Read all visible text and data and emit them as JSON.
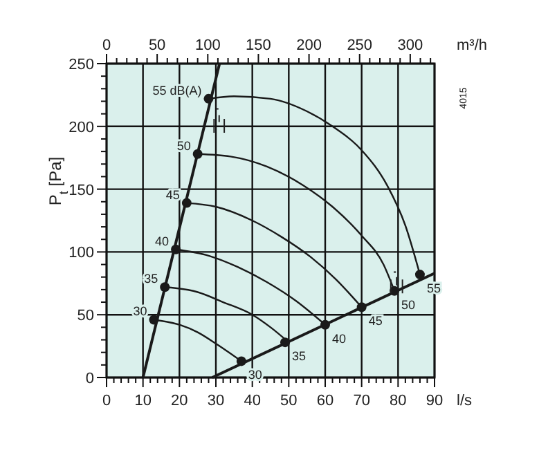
{
  "chart_data": {
    "type": "line",
    "xlabel": "l/s",
    "ylabel": "P$_{t}$ [Pa]",
    "x2label": "m³/h",
    "xlim": [
      0,
      90
    ],
    "ylim": [
      0,
      250
    ],
    "x2lim": [
      0,
      324
    ],
    "xticks": [
      0,
      {
        "value": 2,
        "label": null
      },
      {
        "value": 4,
        "label": null
      },
      {
        "value": 6,
        "label": null
      },
      {
        "value": 8,
        "label": null
      },
      10,
      {
        "value": 12,
        "label": null
      },
      {
        "value": 14,
        "label": null
      },
      {
        "value": 16,
        "label": null
      },
      {
        "value": 18,
        "label": null
      },
      20,
      {
        "value": 22,
        "label": null
      },
      {
        "value": 24,
        "label": null
      },
      {
        "value": 26,
        "label": null
      },
      {
        "value": 28,
        "label": null
      },
      30,
      {
        "value": 32,
        "label": null
      },
      {
        "value": 34,
        "label": null
      },
      {
        "value": 36,
        "label": null
      },
      {
        "value": 38,
        "label": null
      },
      40,
      {
        "value": 42,
        "label": null
      },
      {
        "value": 44,
        "label": null
      },
      {
        "value": 46,
        "label": null
      },
      {
        "value": 48,
        "label": null
      },
      50,
      {
        "value": 52,
        "label": null
      },
      {
        "value": 54,
        "label": null
      },
      {
        "value": 56,
        "label": null
      },
      {
        "value": 58,
        "label": null
      },
      60,
      {
        "value": 62,
        "label": null
      },
      {
        "value": 64,
        "label": null
      },
      {
        "value": 66,
        "label": null
      },
      {
        "value": 68,
        "label": null
      },
      70,
      {
        "value": 72,
        "label": null
      },
      {
        "value": 74,
        "label": null
      },
      {
        "value": 76,
        "label": null
      },
      {
        "value": 78,
        "label": null
      },
      80,
      {
        "value": 82,
        "label": null
      },
      {
        "value": 84,
        "label": null
      },
      {
        "value": 86,
        "label": null
      },
      {
        "value": 88,
        "label": null
      },
      90
    ],
    "yticks": [
      0,
      {
        "value": 10,
        "label": null
      },
      {
        "value": 20,
        "label": null
      },
      {
        "value": 30,
        "label": null
      },
      {
        "value": 40,
        "label": null
      },
      50,
      {
        "value": 60,
        "label": null
      },
      {
        "value": 70,
        "label": null
      },
      {
        "value": 80,
        "label": null
      },
      {
        "value": 90,
        "label": null
      },
      100,
      {
        "value": 110,
        "label": null
      },
      {
        "value": 120,
        "label": null
      },
      {
        "value": 130,
        "label": null
      },
      {
        "value": 140,
        "label": null
      },
      150,
      {
        "value": 160,
        "label": null
      },
      {
        "value": 170,
        "label": null
      },
      {
        "value": 180,
        "label": null
      },
      {
        "value": 190,
        "label": null
      },
      200,
      {
        "value": 210,
        "label": null
      },
      {
        "value": 220,
        "label": null
      },
      {
        "value": 230,
        "label": null
      },
      {
        "value": 240,
        "label": null
      },
      250
    ],
    "x2ticks": [
      0,
      {
        "value": 10,
        "label": null
      },
      {
        "value": 20,
        "label": null
      },
      {
        "value": 30,
        "label": null
      },
      {
        "value": 40,
        "label": null
      },
      50,
      {
        "value": 60,
        "label": null
      },
      {
        "value": 70,
        "label": null
      },
      {
        "value": 80,
        "label": null
      },
      {
        "value": 90,
        "label": null
      },
      100,
      {
        "value": 110,
        "label": null
      },
      {
        "value": 120,
        "label": null
      },
      {
        "value": 130,
        "label": null
      },
      {
        "value": 140,
        "label": null
      },
      150,
      {
        "value": 160,
        "label": null
      },
      {
        "value": 170,
        "label": null
      },
      {
        "value": 180,
        "label": null
      },
      {
        "value": 190,
        "label": null
      },
      200,
      {
        "value": 210,
        "label": null
      },
      {
        "value": 220,
        "label": null
      },
      {
        "value": 230,
        "label": null
      },
      {
        "value": 240,
        "label": null
      },
      250,
      {
        "value": 260,
        "label": null
      },
      {
        "value": 270,
        "label": null
      },
      {
        "value": 280,
        "label": null
      },
      {
        "value": 290,
        "label": null
      },
      300,
      {
        "value": 310,
        "label": null
      },
      {
        "value": 320,
        "label": null
      }
    ],
    "grid": true,
    "line_style": "solid",
    "marker": "none",
    "series": [
      {
        "color": "#1a1a1a",
        "x": [
          13,
          20,
          25,
          30,
          37
        ],
        "values": [
          46,
          42,
          36,
          27,
          13
        ]
      },
      {
        "color": "#1a1a1a",
        "x": [
          16,
          25,
          32,
          40,
          45,
          50
        ],
        "values": [
          72,
          68,
          60,
          50,
          40,
          28
        ]
      },
      {
        "color": "#1a1a1a",
        "x": [
          19,
          28,
          36,
          44,
          52,
          60
        ],
        "values": [
          102,
          97,
          88,
          76,
          61,
          42
        ]
      },
      {
        "color": "#1a1a1a",
        "x": [
          22,
          30,
          40,
          48,
          56,
          63,
          70
        ],
        "values": [
          139,
          136,
          125,
          112,
          96,
          78,
          56
        ]
      },
      {
        "color": "#1a1a1a",
        "x": [
          25,
          34,
          44,
          54,
          62,
          70,
          76,
          79
        ],
        "values": [
          178,
          176,
          168,
          153,
          136,
          113,
          90,
          69
        ]
      },
      {
        "color": "#1a1a1a",
        "x": [
          28,
          35,
          45,
          55,
          62,
          70,
          77,
          82,
          86
        ],
        "values": [
          222,
          224,
          222,
          212,
          200,
          181,
          153,
          121,
          82
        ]
      },
      {
        "color": "#1a1a1a",
        "x": [
          10,
          31
        ],
        "values": [
          0,
          250
        ]
      },
      {
        "color": "#1a1a1a",
        "x": [
          29,
          90
        ],
        "values": [
          0,
          83
        ]
      },
      {
        "type": "scatter",
        "marker": "circle",
        "color": "#1a1a1a",
        "x": [
          13,
          16,
          19,
          22,
          25,
          28
        ],
        "values": [
          46,
          72,
          102,
          139,
          178,
          222
        ]
      },
      {
        "type": "scatter",
        "marker": "circle",
        "color": "#1a1a1a",
        "x": [
          37,
          49,
          60,
          70,
          79,
          86
        ],
        "values": [
          13,
          28,
          42,
          56,
          69,
          82
        ]
      }
    ],
    "annotations": [
      "4015",
      {
        "text": "30",
        "x": 13,
        "y": 46
      },
      {
        "text": "35",
        "x": 16,
        "y": 72
      },
      {
        "text": "40",
        "x": 19,
        "y": 102
      },
      {
        "text": "45",
        "x": 22,
        "y": 139
      },
      {
        "text": "50",
        "x": 25,
        "y": 178
      },
      {
        "text": "55 dB(A)",
        "x": 28,
        "y": 222
      },
      {
        "text": "30",
        "x": 37,
        "y": 13
      },
      {
        "text": "35",
        "x": 49,
        "y": 28
      },
      {
        "text": "40",
        "x": 60,
        "y": 42
      },
      {
        "text": "45",
        "x": 70,
        "y": 56
      },
      {
        "text": "50",
        "x": 79,
        "y": 69
      },
      {
        "text": "55",
        "x": 86,
        "y": 82
      }
    ]
  }
}
